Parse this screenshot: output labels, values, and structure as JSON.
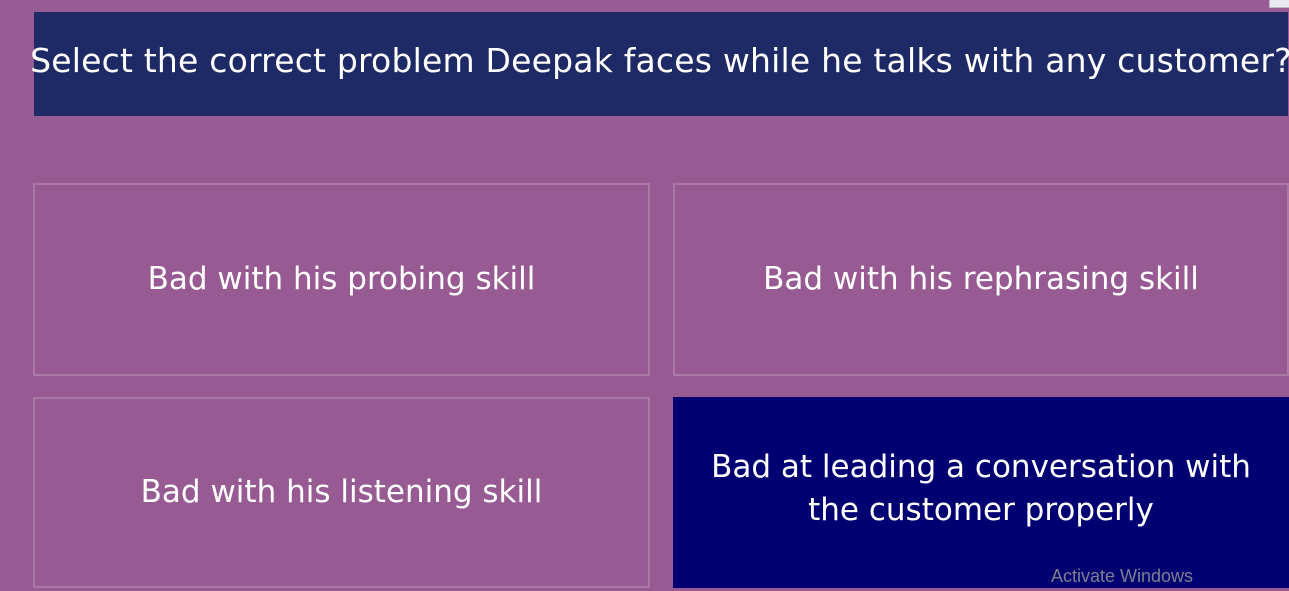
{
  "question": {
    "text": "Select the correct problem Deepak faces while he talks with any customer?"
  },
  "options": [
    {
      "id": "a",
      "label": "Bad with his probing skill",
      "selected": false
    },
    {
      "id": "b",
      "label": "Bad with his rephrasing skill",
      "selected": false
    },
    {
      "id": "c",
      "label": "Bad with his listening skill",
      "selected": false
    },
    {
      "id": "d",
      "label": "Bad at leading a conversation with the customer properly",
      "selected": true
    }
  ],
  "watermark": {
    "text": "Activate Windows"
  },
  "colors": {
    "background": "#985a93",
    "question_banner": "#1e2a66",
    "option_border": "#ab79a6",
    "selected_option": "#000072",
    "text": "#ffffff"
  }
}
